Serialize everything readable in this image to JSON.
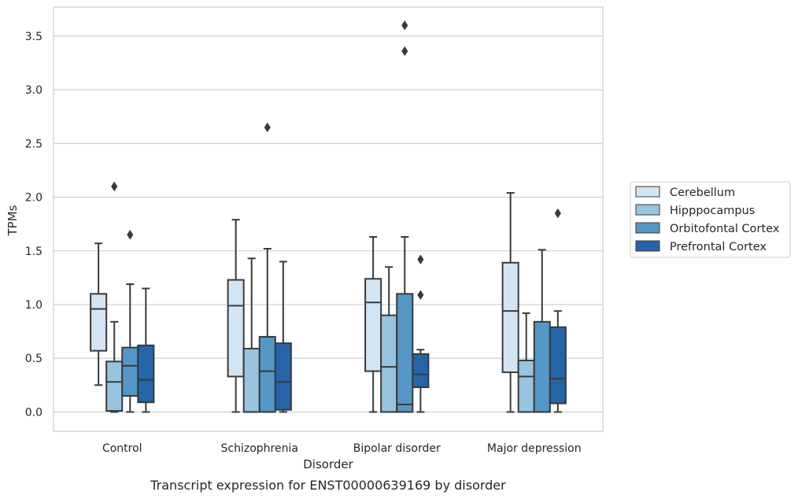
{
  "chart_data": {
    "type": "box",
    "caption": "Transcript expression for ENST00000639169 by disorder",
    "xlabel": "Disorder",
    "ylabel": "TPMs",
    "ylim": [
      -0.18,
      3.77
    ],
    "yticks": [
      0.0,
      0.5,
      1.0,
      1.5,
      2.0,
      2.5,
      3.0,
      3.5
    ],
    "ytick_labels": [
      "0.0",
      "0.5",
      "1.0",
      "1.5",
      "2.0",
      "2.5",
      "3.0",
      "3.5"
    ],
    "grid": true,
    "legend_position": "right",
    "categories": [
      "Control",
      "Schizophrenia",
      "Bipolar disorder",
      "Major depression"
    ],
    "series": [
      {
        "name": "Cerebellum",
        "color": "#d3e4f3",
        "boxes": [
          {
            "min": 0.25,
            "q1": 0.57,
            "median": 0.96,
            "q3": 1.1,
            "max": 1.57,
            "outliers": []
          },
          {
            "min": 0.0,
            "q1": 0.33,
            "median": 0.99,
            "q3": 1.23,
            "max": 1.79,
            "outliers": []
          },
          {
            "min": 0.0,
            "q1": 0.38,
            "median": 1.02,
            "q3": 1.24,
            "max": 1.63,
            "outliers": []
          },
          {
            "min": 0.0,
            "q1": 0.37,
            "median": 0.94,
            "q3": 1.39,
            "max": 2.04,
            "outliers": []
          }
        ]
      },
      {
        "name": "Hipppocampus",
        "color": "#98c4df",
        "boxes": [
          {
            "min": 0.0,
            "q1": 0.01,
            "median": 0.28,
            "q3": 0.47,
            "max": 0.84,
            "outliers": [
              2.1
            ]
          },
          {
            "min": 0.0,
            "q1": 0.0,
            "median": 0.0,
            "q3": 0.59,
            "max": 1.43,
            "outliers": []
          },
          {
            "min": 0.0,
            "q1": 0.0,
            "median": 0.42,
            "q3": 0.9,
            "max": 1.35,
            "outliers": []
          },
          {
            "min": 0.0,
            "q1": 0.0,
            "median": 0.33,
            "q3": 0.48,
            "max": 0.92,
            "outliers": []
          }
        ]
      },
      {
        "name": "Orbitofontal Cortex",
        "color": "#5497c7",
        "boxes": [
          {
            "min": 0.0,
            "q1": 0.15,
            "median": 0.43,
            "q3": 0.6,
            "max": 1.19,
            "outliers": [
              1.65
            ]
          },
          {
            "min": 0.0,
            "q1": 0.0,
            "median": 0.38,
            "q3": 0.7,
            "max": 1.52,
            "outliers": [
              2.65
            ]
          },
          {
            "min": 0.0,
            "q1": 0.0,
            "median": 0.07,
            "q3": 1.1,
            "max": 1.63,
            "outliers": [
              3.36,
              3.6
            ]
          },
          {
            "min": 0.0,
            "q1": 0.0,
            "median": 0.0,
            "q3": 0.84,
            "max": 1.51,
            "outliers": []
          }
        ]
      },
      {
        "name": "Prefrontal Cortex",
        "color": "#2564a8",
        "boxes": [
          {
            "min": 0.0,
            "q1": 0.09,
            "median": 0.3,
            "q3": 0.62,
            "max": 1.15,
            "outliers": []
          },
          {
            "min": 0.0,
            "q1": 0.02,
            "median": 0.28,
            "q3": 0.64,
            "max": 1.4,
            "outliers": []
          },
          {
            "min": 0.0,
            "q1": 0.23,
            "median": 0.35,
            "q3": 0.54,
            "max": 0.58,
            "outliers": [
              1.09,
              1.42
            ]
          },
          {
            "min": 0.0,
            "q1": 0.08,
            "median": 0.31,
            "q3": 0.79,
            "max": 0.94,
            "outliers": [
              1.85
            ]
          }
        ]
      }
    ]
  }
}
